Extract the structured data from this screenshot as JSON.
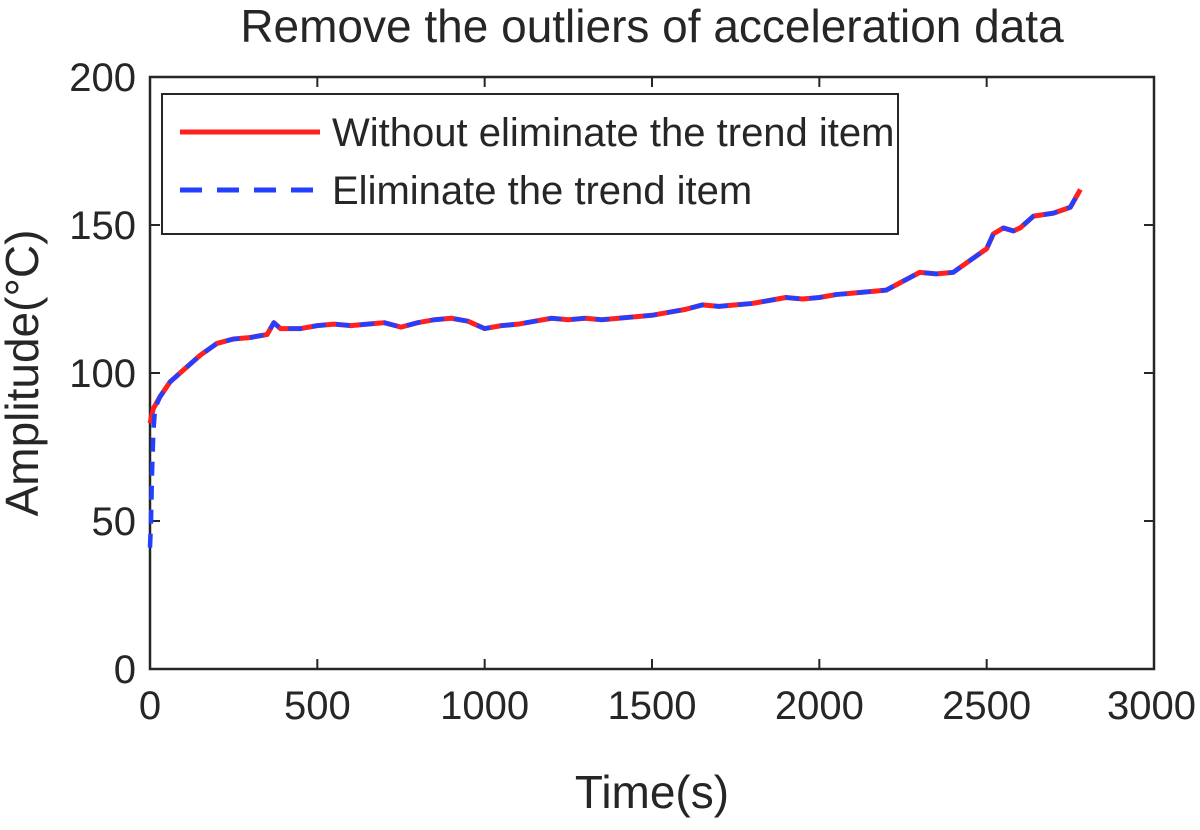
{
  "chart_data": {
    "type": "line",
    "title": "Remove the outliers of acceleration data",
    "xlabel": "Time(s)",
    "ylabel": "Amplitude(°C)",
    "xlim": [
      0,
      3000
    ],
    "ylim": [
      0,
      200
    ],
    "xticks": [
      0,
      500,
      1000,
      1500,
      2000,
      2500,
      3000
    ],
    "yticks": [
      0,
      50,
      100,
      150,
      200
    ],
    "grid": false,
    "legend_position": "top-left",
    "series": [
      {
        "name": "Without eliminate the trend item",
        "color": "#ff2020",
        "style": "solid",
        "points": [
          [
            0,
            83
          ],
          [
            10,
            88
          ],
          [
            30,
            92
          ],
          [
            60,
            97
          ],
          [
            100,
            101
          ],
          [
            150,
            106
          ],
          [
            200,
            110
          ],
          [
            250,
            111.5
          ],
          [
            300,
            112
          ],
          [
            350,
            113
          ],
          [
            370,
            117
          ],
          [
            390,
            115
          ],
          [
            450,
            115
          ],
          [
            500,
            116
          ],
          [
            550,
            116.5
          ],
          [
            600,
            116
          ],
          [
            650,
            116.5
          ],
          [
            700,
            117
          ],
          [
            750,
            115.5
          ],
          [
            800,
            117
          ],
          [
            850,
            118
          ],
          [
            900,
            118.5
          ],
          [
            950,
            117.5
          ],
          [
            1000,
            115
          ],
          [
            1050,
            116
          ],
          [
            1100,
            116.5
          ],
          [
            1150,
            117.5
          ],
          [
            1200,
            118.5
          ],
          [
            1250,
            118
          ],
          [
            1300,
            118.5
          ],
          [
            1350,
            118
          ],
          [
            1400,
            118.5
          ],
          [
            1450,
            119
          ],
          [
            1500,
            119.5
          ],
          [
            1550,
            120.5
          ],
          [
            1600,
            121.5
          ],
          [
            1650,
            123
          ],
          [
            1700,
            122.5
          ],
          [
            1750,
            123
          ],
          [
            1800,
            123.5
          ],
          [
            1850,
            124.5
          ],
          [
            1900,
            125.5
          ],
          [
            1950,
            125
          ],
          [
            2000,
            125.5
          ],
          [
            2050,
            126.5
          ],
          [
            2100,
            127
          ],
          [
            2150,
            127.5
          ],
          [
            2200,
            128
          ],
          [
            2250,
            131
          ],
          [
            2300,
            134
          ],
          [
            2350,
            133.5
          ],
          [
            2400,
            134
          ],
          [
            2450,
            138
          ],
          [
            2500,
            142
          ],
          [
            2520,
            147
          ],
          [
            2550,
            149
          ],
          [
            2580,
            148
          ],
          [
            2600,
            149
          ],
          [
            2640,
            153
          ],
          [
            2700,
            154
          ],
          [
            2750,
            156
          ],
          [
            2780,
            162
          ]
        ]
      },
      {
        "name": "Eliminate the trend item",
        "color": "#2340ff",
        "style": "dashed",
        "points": [
          [
            0,
            41
          ],
          [
            3,
            50
          ],
          [
            6,
            66
          ],
          [
            10,
            80
          ],
          [
            15,
            88
          ],
          [
            30,
            92
          ],
          [
            60,
            97
          ],
          [
            100,
            101
          ],
          [
            150,
            106
          ],
          [
            200,
            110
          ],
          [
            250,
            111.5
          ],
          [
            300,
            112
          ],
          [
            350,
            113
          ],
          [
            370,
            117
          ],
          [
            390,
            115
          ],
          [
            450,
            115
          ],
          [
            500,
            116
          ],
          [
            550,
            116.5
          ],
          [
            600,
            116
          ],
          [
            650,
            116.5
          ],
          [
            700,
            117
          ],
          [
            750,
            115.5
          ],
          [
            800,
            117
          ],
          [
            850,
            118
          ],
          [
            900,
            118.5
          ],
          [
            950,
            117.5
          ],
          [
            1000,
            115
          ],
          [
            1050,
            116
          ],
          [
            1100,
            116.5
          ],
          [
            1150,
            117.5
          ],
          [
            1200,
            118.5
          ],
          [
            1250,
            118
          ],
          [
            1300,
            118.5
          ],
          [
            1350,
            118
          ],
          [
            1400,
            118.5
          ],
          [
            1450,
            119
          ],
          [
            1500,
            119.5
          ],
          [
            1550,
            120.5
          ],
          [
            1600,
            121.5
          ],
          [
            1650,
            123
          ],
          [
            1700,
            122.5
          ],
          [
            1750,
            123
          ],
          [
            1800,
            123.5
          ],
          [
            1850,
            124.5
          ],
          [
            1900,
            125.5
          ],
          [
            1950,
            125
          ],
          [
            2000,
            125.5
          ],
          [
            2050,
            126.5
          ],
          [
            2100,
            127
          ],
          [
            2150,
            127.5
          ],
          [
            2200,
            128
          ],
          [
            2250,
            131
          ],
          [
            2300,
            134
          ],
          [
            2350,
            133.5
          ],
          [
            2400,
            134
          ],
          [
            2450,
            138
          ],
          [
            2500,
            142
          ],
          [
            2520,
            147
          ],
          [
            2550,
            149
          ],
          [
            2580,
            148
          ],
          [
            2600,
            149
          ],
          [
            2640,
            153
          ],
          [
            2700,
            154
          ],
          [
            2750,
            156
          ],
          [
            2780,
            162
          ]
        ]
      }
    ]
  }
}
